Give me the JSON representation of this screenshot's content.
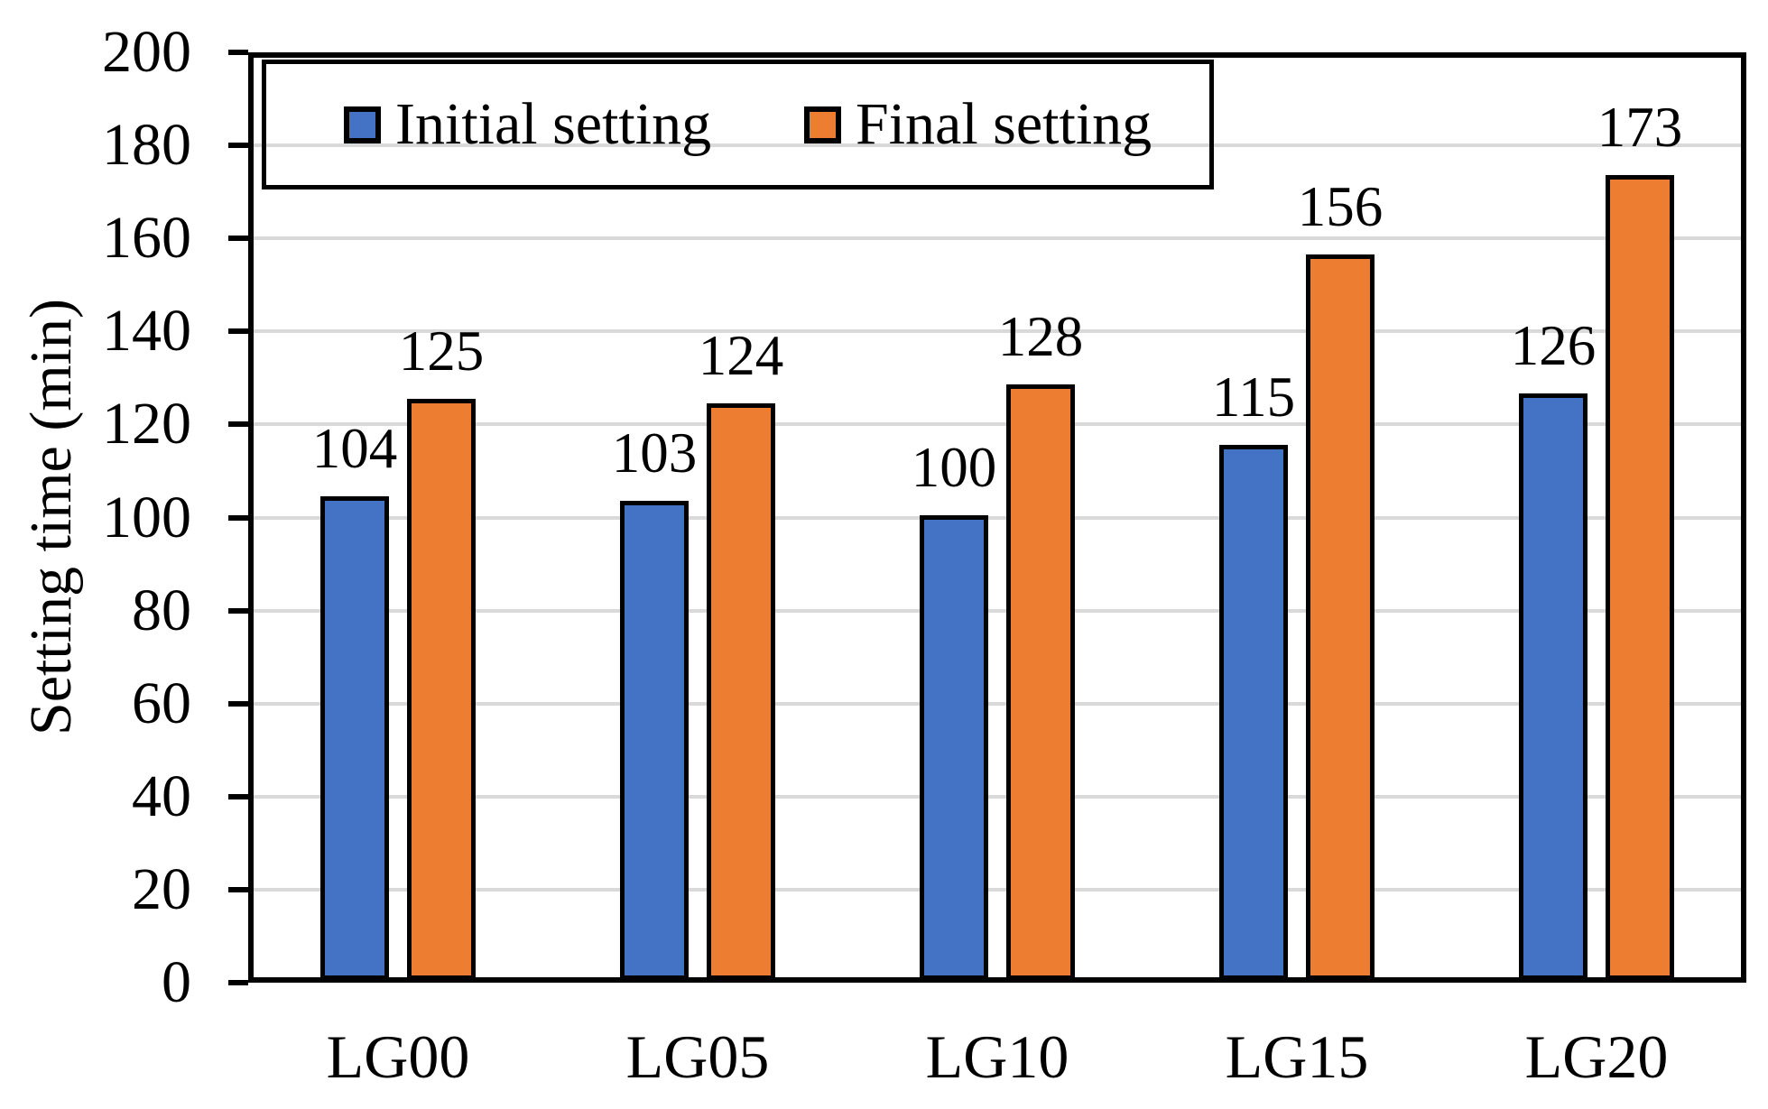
{
  "chart_data": {
    "type": "bar",
    "title": "",
    "categories": [
      "LG00",
      "LG05",
      "LG10",
      "LG15",
      "LG20"
    ],
    "series": [
      {
        "name": "Initial setting",
        "color": "#4472C4",
        "values": [
          104,
          103,
          100,
          115,
          126
        ]
      },
      {
        "name": "Final setting",
        "color": "#ED7D31",
        "values": [
          125,
          124,
          128,
          156,
          173
        ]
      }
    ],
    "xlabel": "",
    "ylabel": "Setting time (min)",
    "ylim": [
      0,
      200
    ],
    "yticks": [
      0,
      20,
      40,
      60,
      80,
      100,
      120,
      140,
      160,
      180,
      200
    ],
    "grid": true,
    "gridline_color": "#D9D9D9",
    "axis_color": "#000000",
    "bar_border_color": "#000000",
    "text_color": "#000000",
    "legend_position": "top-left-inside",
    "data_labels": true
  }
}
